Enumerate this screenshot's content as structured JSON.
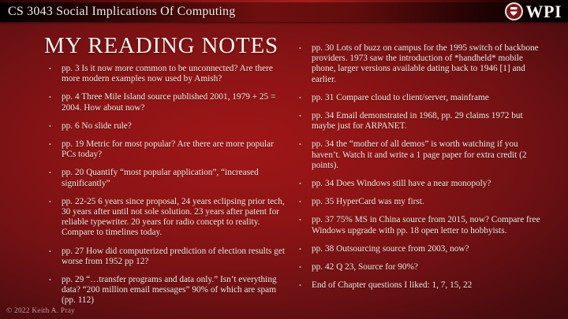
{
  "colors": {
    "bg_center": "#a01617",
    "bg_edge": "#330a0c",
    "header_red": "#6e0f0f",
    "body_text": "#f3eae2",
    "bullet_marker": "#dcbfb9",
    "footer_text": "#cf9f9a",
    "seal_red": "#8c1d23"
  },
  "header": {
    "course_title": "CS 3043 Social Implications Of Computing",
    "logo_text": "WPI"
  },
  "slide": {
    "title": "MY READING NOTES",
    "bullet_char": "•",
    "columns": {
      "left": [
        "pp. 3 Is it now more common to be unconnected? Are there more modern examples now used by Amish?",
        "pp. 4 Three Mile Island source published 2001, 1979 + 25 = 2004. How about now?",
        "pp. 6 No slide rule?",
        "pp. 19 Metric for most popular? Are there are more popular PCs today?",
        "pp. 20 Quantify “most popular application”, “increased significantly”",
        "pp. 22-25 6 years since proposal, 24 years eclipsing prior tech, 30 years after until not sole solution. 23 years after patent for reliable typewriter. 20 years for radio concept to reality. Compare to timelines today.",
        "pp. 27 How did computerized prediction of election results get worse from 1952 pp 12?",
        "pp. 29 “…transfer programs and data only.” Isn’t everything data? “200 million email messages” 90% of which are spam (pp. 112)"
      ],
      "right": [
        "pp. 30 Lots of buzz on campus for the 1995 switch of backbone providers. 1973 saw the introduction of *handheld* mobile phone, larger versions available dating back to 1946 [1] and earlier.",
        "pp. 31 Compare cloud to client/server, mainframe",
        "pp. 34 Email demonstrated in 1968, pp. 29 claims 1972 but maybe just for ARPANET.",
        "pp. 34 the “mother of all demos” is worth watching if you haven’t. Watch it and write a 1 page paper for extra credit (2 points).",
        "pp. 34 Does Windows still have a near monopoly?",
        "pp. 35 HyperCard was my first.",
        "pp. 37 75% MS in China source from 2015, now? Compare free Windows upgrade with pp. 18 open letter to hobbyists.",
        "pp. 38 Outsourcing source from 2003, now?",
        "pp. 42 Q 23, Source for 90%?",
        "End of Chapter questions I liked: 1, 7, 15, 22"
      ]
    }
  },
  "footer": {
    "copyright": "© 2022 Keith A. Pray"
  }
}
